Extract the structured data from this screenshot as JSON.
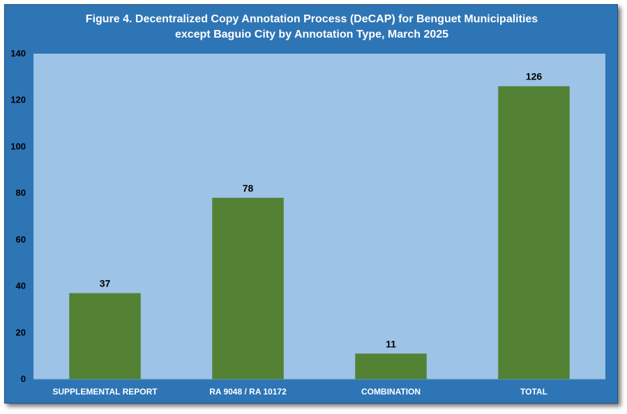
{
  "chart_data": {
    "type": "bar",
    "title_line1": "Figure 4. Decentralized Copy Annotation Process (DeCAP) for Benguet Municipalities",
    "title_line2": "except Baguio City by Annotation Type, March 2025",
    "categories": [
      "SUPPLEMENTAL REPORT",
      "RA 9048 / RA 10172",
      "COMBINATION",
      "TOTAL"
    ],
    "values": [
      37,
      78,
      11,
      126
    ],
    "ylim": [
      0,
      140
    ],
    "yticks": [
      0,
      20,
      40,
      60,
      80,
      100,
      120,
      140
    ],
    "xlabel": "",
    "ylabel": "",
    "grid": false,
    "legend": "none",
    "colors": {
      "frame": "#2e75b6",
      "plot_area": "#9dc3e6",
      "bar": "#548235",
      "title_text": "#ffffff",
      "category_text": "#ffffff"
    }
  }
}
